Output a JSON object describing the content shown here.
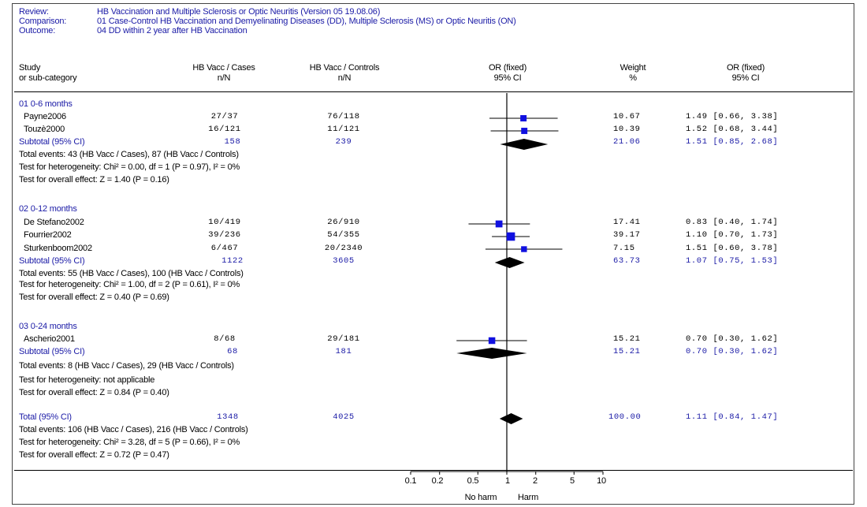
{
  "header": {
    "review_label": "Review:",
    "review_value": "HB Vaccination and Multiple Sclerosis or Optic Neuritis (Version 05 19.08.06)",
    "comparison_label": "Comparison:",
    "comparison_value": "01 Case-Control HB Vaccination and Demyelinating Diseases (DD), Multiple Sclerosis (MS) or Optic Neuritis (ON)",
    "outcome_label": "Outcome:",
    "outcome_value": "04 DD within 2 year after HB Vaccination"
  },
  "columns": {
    "study_1": "Study",
    "study_2": "or sub-category",
    "cases_1": "HB Vacc / Cases",
    "cases_2": "n/N",
    "controls_1": "HB Vacc / Controls",
    "controls_2": "n/N",
    "or_plot_1": "OR (fixed)",
    "or_plot_2": "95% CI",
    "weight_1": "Weight",
    "weight_2": "%",
    "or_1": "OR (fixed)",
    "or_2": "95% CI"
  },
  "groups": [
    {
      "title": "01 0-6 months",
      "studies": [
        {
          "name": "Payne2006",
          "cases": "27/37",
          "controls": "76/118",
          "weight": "10.67",
          "or_text": "1.49 [0.66, 3.38]"
        },
        {
          "name": "Touzè2000",
          "cases": "16/121",
          "controls": "11/121",
          "weight": "10.39",
          "or_text": "1.52 [0.68, 3.44]"
        }
      ],
      "subtotal": {
        "label": "Subtotal (95% CI)",
        "cases": "158",
        "controls": "239",
        "weight": "21.06",
        "or_text": "1.51 [0.85, 2.68]"
      },
      "notes": [
        "Total events: 43 (HB Vacc / Cases), 87 (HB Vacc / Controls)",
        "Test for heterogeneity: Chi² = 0.00, df = 1 (P = 0.97), I² = 0%",
        "Test for overall effect: Z = 1.40 (P = 0.16)"
      ]
    },
    {
      "title": "02 0-12 months",
      "studies": [
        {
          "name": "De Stefano2002",
          "cases": "10/419",
          "controls": "26/910",
          "weight": "17.41",
          "or_text": "0.83 [0.40, 1.74]"
        },
        {
          "name": "Fourrier2002",
          "cases": "39/236",
          "controls": "54/355",
          "weight": "39.17",
          "or_text": "1.10 [0.70, 1.73]"
        },
        {
          "name": "Sturkenboom2002",
          "cases": "6/467",
          "controls": "20/2340",
          "weight": "7.15",
          "or_text": "1.51 [0.60, 3.78]"
        }
      ],
      "subtotal": {
        "label": "Subtotal (95% CI)",
        "cases": "1122",
        "controls": "3605",
        "weight": "63.73",
        "or_text": "1.07 [0.75, 1.53]"
      },
      "notes": [
        "Total events: 55 (HB Vacc / Cases), 100 (HB Vacc / Controls)",
        "Test for heterogeneity: Chi² = 1.00, df = 2 (P = 0.61), I² = 0%",
        "Test for overall effect: Z = 0.40 (P = 0.69)"
      ]
    },
    {
      "title": "03 0-24 months",
      "studies": [
        {
          "name": "Ascherio2001",
          "cases": "8/68",
          "controls": "29/181",
          "weight": "15.21",
          "or_text": "0.70 [0.30, 1.62]"
        }
      ],
      "subtotal": {
        "label": "Subtotal (95% CI)",
        "cases": "68",
        "controls": "181",
        "weight": "15.21",
        "or_text": "0.70 [0.30, 1.62]"
      },
      "notes": [
        "Total events: 8 (HB Vacc / Cases), 29 (HB Vacc / Controls)",
        "Test for heterogeneity: not applicable",
        "Test for overall effect: Z = 0.84 (P = 0.40)"
      ]
    }
  ],
  "total": {
    "label": "Total (95% CI)",
    "cases": "1348",
    "controls": "4025",
    "weight": "100.00",
    "or_text": "1.11 [0.84, 1.47]",
    "notes": [
      "Total events: 106 (HB Vacc / Cases), 216 (HB Vacc / Controls)",
      "Test for heterogeneity: Chi² = 3.28, df = 5 (P = 0.66), I² = 0%",
      "Test for overall effect: Z = 0.72 (P = 0.47)"
    ]
  },
  "axis": {
    "ticks": [
      "0.1",
      "0.2",
      "0.5",
      "1",
      "2",
      "5",
      "10"
    ],
    "left_label": "No harm",
    "right_label": "Harm"
  },
  "colors": {
    "blue_text": "#1a1aa6",
    "marker": "#1010e0",
    "diamond": "#000000"
  },
  "chart_data": {
    "type": "forest",
    "scale": "log",
    "xlim": [
      0.1,
      10
    ],
    "reference_line": 1,
    "x_ticks": [
      0.1,
      0.2,
      0.5,
      1,
      2,
      5,
      10
    ],
    "studies": [
      {
        "name": "Payne2006",
        "group": "01 0-6 months",
        "or": 1.49,
        "lo": 0.66,
        "hi": 3.38,
        "weight": 10.67
      },
      {
        "name": "Touzè2000",
        "group": "01 0-6 months",
        "or": 1.52,
        "lo": 0.68,
        "hi": 3.44,
        "weight": 10.39
      },
      {
        "name": "De Stefano2002",
        "group": "02 0-12 months",
        "or": 0.83,
        "lo": 0.4,
        "hi": 1.74,
        "weight": 17.41
      },
      {
        "name": "Fourrier2002",
        "group": "02 0-12 months",
        "or": 1.1,
        "lo": 0.7,
        "hi": 1.73,
        "weight": 39.17
      },
      {
        "name": "Sturkenboom2002",
        "group": "02 0-12 months",
        "or": 1.51,
        "lo": 0.6,
        "hi": 3.78,
        "weight": 7.15
      },
      {
        "name": "Ascherio2001",
        "group": "03 0-24 months",
        "or": 0.7,
        "lo": 0.3,
        "hi": 1.62,
        "weight": 15.21
      }
    ],
    "pooled": [
      {
        "name": "Subtotal (95% CI)",
        "group": "01 0-6 months",
        "or": 1.51,
        "lo": 0.85,
        "hi": 2.68
      },
      {
        "name": "Subtotal (95% CI)",
        "group": "02 0-12 months",
        "or": 1.07,
        "lo": 0.75,
        "hi": 1.53
      },
      {
        "name": "Subtotal (95% CI)",
        "group": "03 0-24 months",
        "or": 0.7,
        "lo": 0.3,
        "hi": 1.62
      },
      {
        "name": "Total (95% CI)",
        "group": "overall",
        "or": 1.11,
        "lo": 0.84,
        "hi": 1.47
      }
    ]
  }
}
